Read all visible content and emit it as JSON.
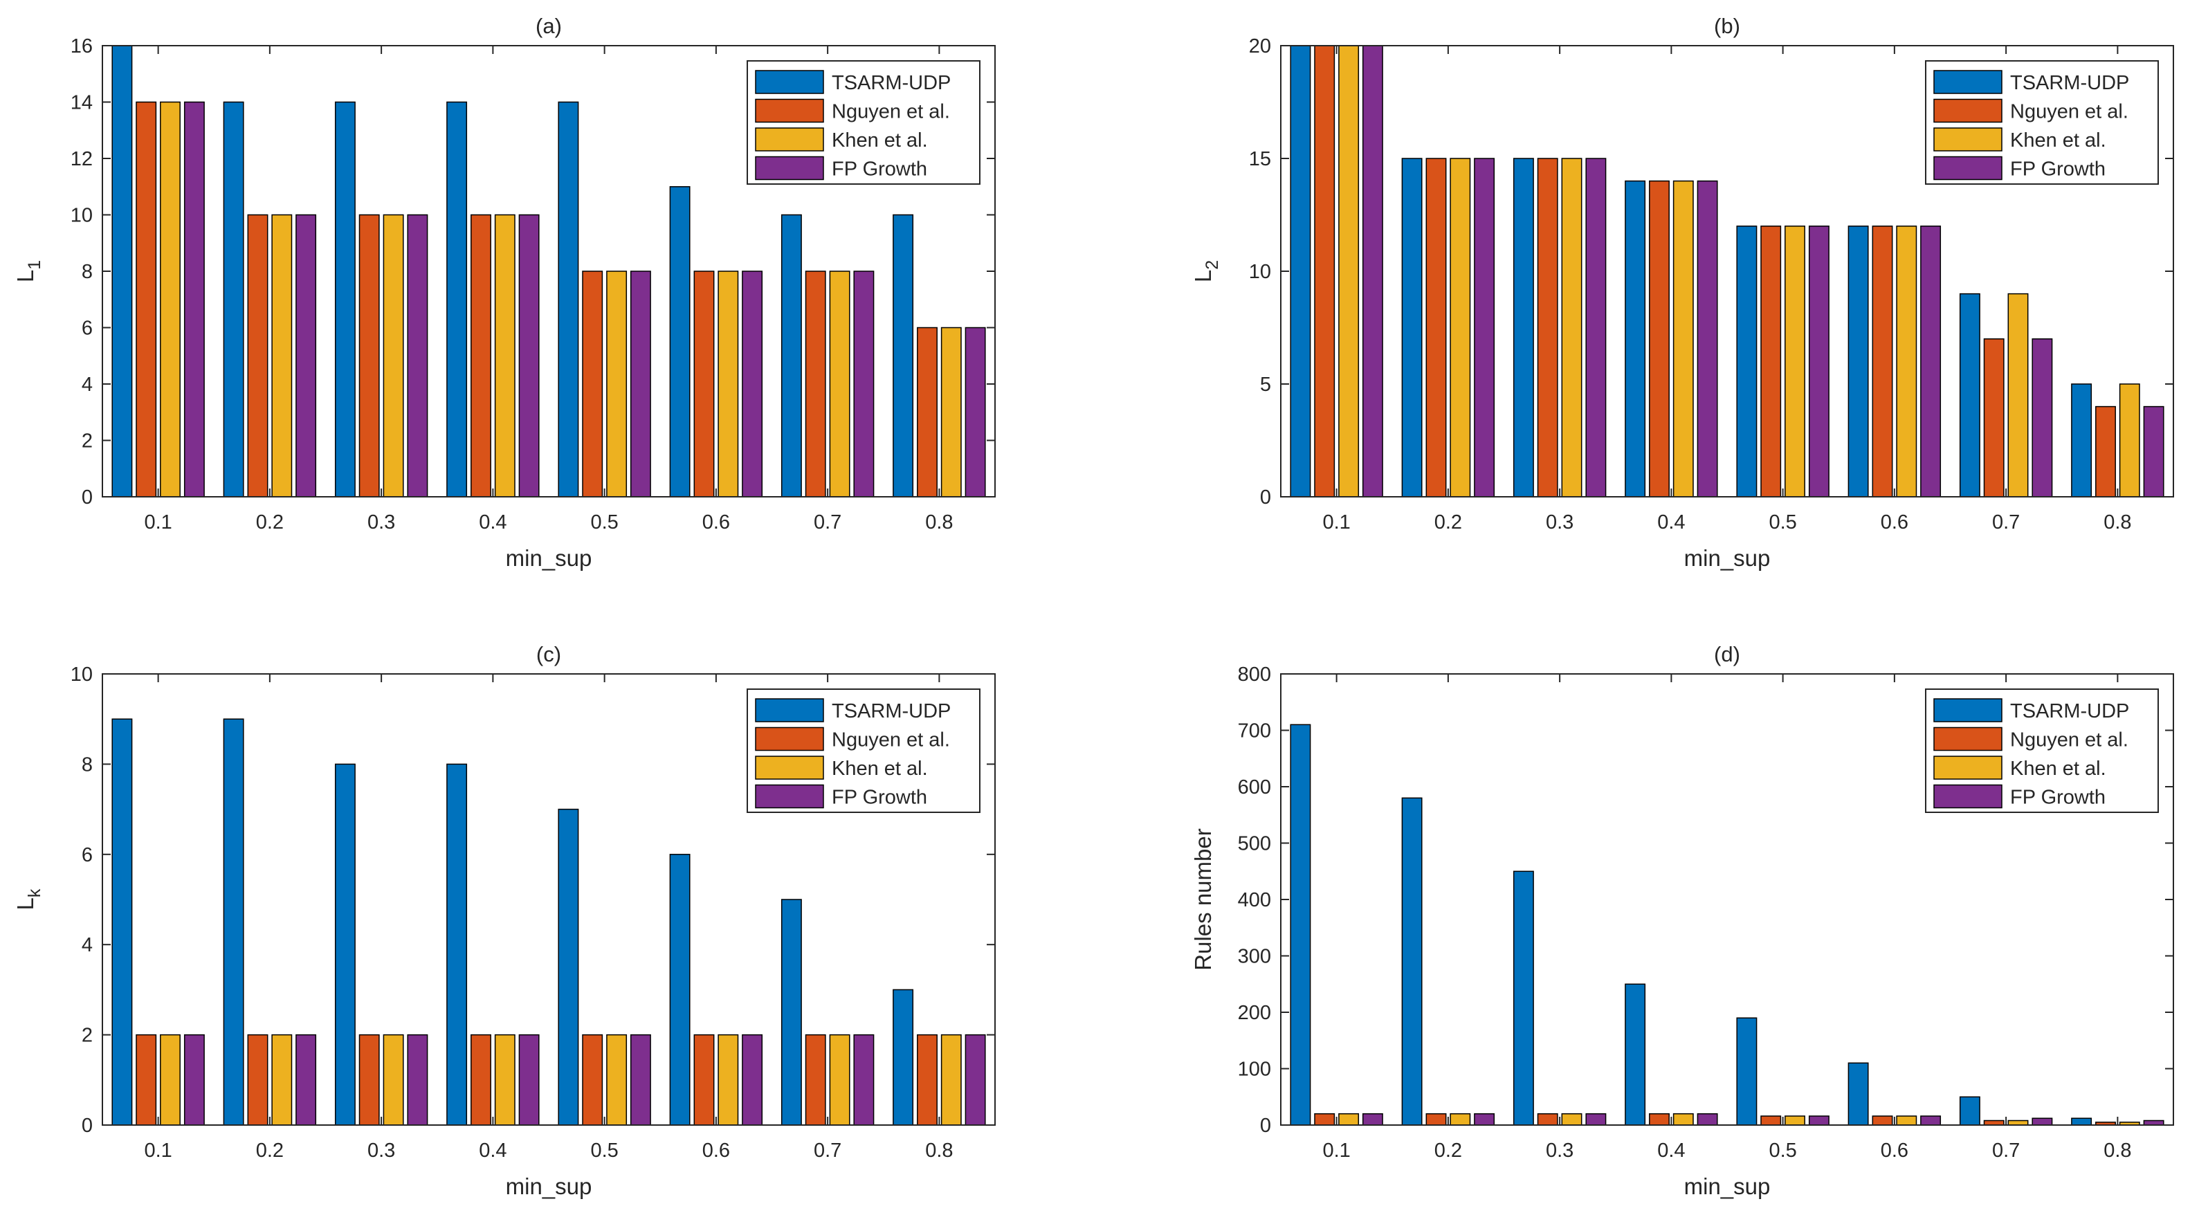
{
  "colors": {
    "series": [
      "#0072BD",
      "#D95319",
      "#EDB120",
      "#7E2F8E"
    ],
    "axis": "#262626",
    "edge": "#000000"
  },
  "chart_data": [
    {
      "type": "bar",
      "title": "(a)",
      "xlabel": "min_sup",
      "ylabel": "L",
      "ylabel_sub": "1",
      "categories": [
        "0.1",
        "0.2",
        "0.3",
        "0.4",
        "0.5",
        "0.6",
        "0.7",
        "0.8"
      ],
      "ylim": [
        0,
        16
      ],
      "yticks": [
        0,
        2,
        4,
        6,
        8,
        10,
        12,
        14,
        16
      ],
      "legend_position": "top-right",
      "series": [
        {
          "name": "TSARM-UDP",
          "values": [
            16,
            14,
            14,
            14,
            14,
            11,
            10,
            10
          ]
        },
        {
          "name": "Nguyen et al.",
          "values": [
            14,
            10,
            10,
            10,
            8,
            8,
            8,
            6
          ]
        },
        {
          "name": "Khen et al.",
          "values": [
            14,
            10,
            10,
            10,
            8,
            8,
            8,
            6
          ]
        },
        {
          "name": "FP Growth",
          "values": [
            14,
            10,
            10,
            10,
            8,
            8,
            8,
            6
          ]
        }
      ]
    },
    {
      "type": "bar",
      "title": "(b)",
      "xlabel": "min_sup",
      "ylabel": "L",
      "ylabel_sub": "2",
      "categories": [
        "0.1",
        "0.2",
        "0.3",
        "0.4",
        "0.5",
        "0.6",
        "0.7",
        "0.8"
      ],
      "ylim": [
        0,
        20
      ],
      "yticks": [
        0,
        5,
        10,
        15,
        20
      ],
      "legend_position": "top-right",
      "series": [
        {
          "name": "TSARM-UDP",
          "values": [
            20,
            15,
            15,
            14,
            12,
            12,
            9,
            5
          ]
        },
        {
          "name": "Nguyen et al.",
          "values": [
            20,
            15,
            15,
            14,
            12,
            12,
            7,
            4
          ]
        },
        {
          "name": "Khen et al.",
          "values": [
            20,
            15,
            15,
            14,
            12,
            12,
            9,
            5
          ]
        },
        {
          "name": "FP Growth",
          "values": [
            20,
            15,
            15,
            14,
            12,
            12,
            7,
            4
          ]
        }
      ]
    },
    {
      "type": "bar",
      "title": "(c)",
      "xlabel": "min_sup",
      "ylabel": "L",
      "ylabel_sub": "k",
      "categories": [
        "0.1",
        "0.2",
        "0.3",
        "0.4",
        "0.5",
        "0.6",
        "0.7",
        "0.8"
      ],
      "ylim": [
        0,
        10
      ],
      "yticks": [
        0,
        2,
        4,
        6,
        8,
        10
      ],
      "legend_position": "top-right",
      "series": [
        {
          "name": "TSARM-UDP",
          "values": [
            9,
            9,
            8,
            8,
            7,
            6,
            5,
            3
          ]
        },
        {
          "name": "Nguyen et al.",
          "values": [
            2,
            2,
            2,
            2,
            2,
            2,
            2,
            2
          ]
        },
        {
          "name": "Khen et al.",
          "values": [
            2,
            2,
            2,
            2,
            2,
            2,
            2,
            2
          ]
        },
        {
          "name": "FP Growth",
          "values": [
            2,
            2,
            2,
            2,
            2,
            2,
            2,
            2
          ]
        }
      ]
    },
    {
      "type": "bar",
      "title": "(d)",
      "xlabel": "min_sup",
      "ylabel": "Rules number",
      "ylabel_sub": "",
      "categories": [
        "0.1",
        "0.2",
        "0.3",
        "0.4",
        "0.5",
        "0.6",
        "0.7",
        "0.8"
      ],
      "ylim": [
        0,
        800
      ],
      "yticks": [
        0,
        100,
        200,
        300,
        400,
        500,
        600,
        700,
        800
      ],
      "legend_position": "top-right",
      "series": [
        {
          "name": "TSARM-UDP",
          "values": [
            710,
            580,
            450,
            250,
            190,
            110,
            50,
            12
          ]
        },
        {
          "name": "Nguyen et al.",
          "values": [
            20,
            20,
            20,
            20,
            16,
            16,
            8,
            5
          ]
        },
        {
          "name": "Khen et al.",
          "values": [
            20,
            20,
            20,
            20,
            16,
            16,
            8,
            5
          ]
        },
        {
          "name": "FP Growth",
          "values": [
            20,
            20,
            20,
            20,
            16,
            16,
            12,
            8
          ]
        }
      ]
    }
  ]
}
